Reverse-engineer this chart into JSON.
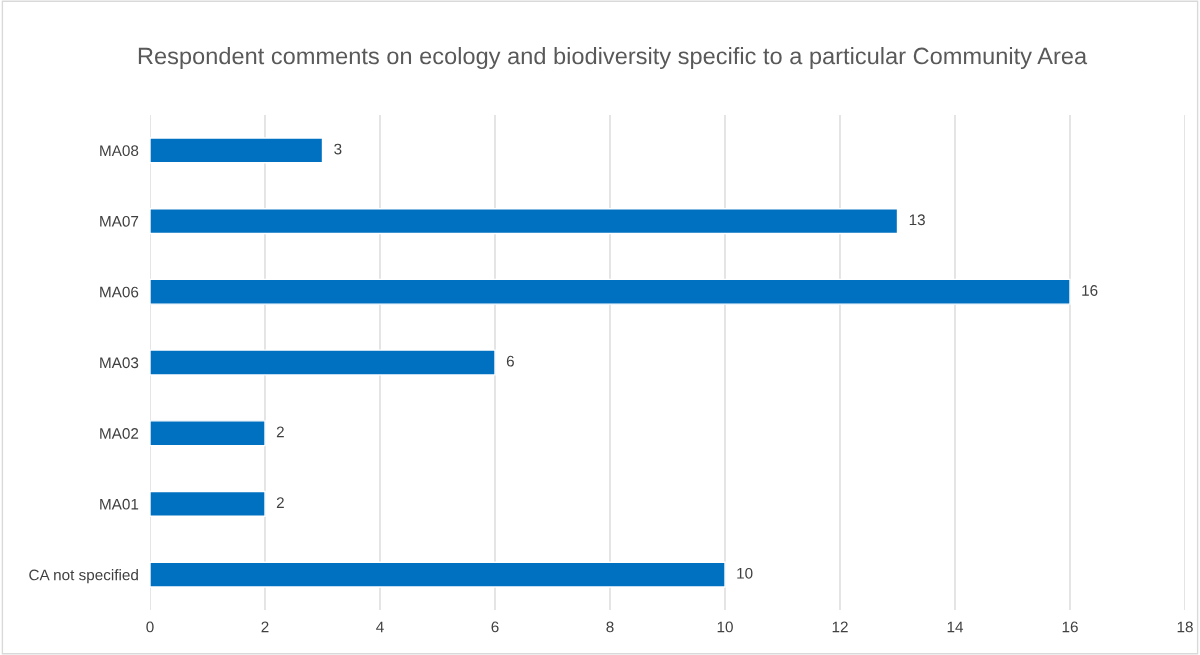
{
  "chart_data": {
    "type": "bar",
    "orientation": "horizontal",
    "title": "Respondent comments on ecology and biodiversity specific to a particular Community Area",
    "categories": [
      "MA08",
      "MA07",
      "MA06",
      "MA03",
      "MA02",
      "MA01",
      "CA not specified"
    ],
    "values": [
      3,
      13,
      16,
      6,
      2,
      2,
      10
    ],
    "color": "#0070c0",
    "xlim": [
      0,
      18
    ],
    "xticks": [
      0,
      2,
      4,
      6,
      8,
      10,
      12,
      14,
      16,
      18
    ],
    "grid": "x",
    "data_labels": true
  }
}
